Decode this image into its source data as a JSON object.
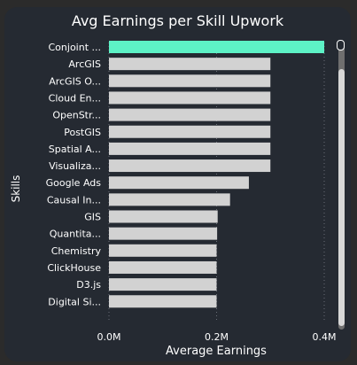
{
  "chart_data": {
    "type": "bar",
    "orientation": "horizontal",
    "title": "Avg Earnings per Skill Upwork",
    "xlabel": "Average Earnings",
    "ylabel": "Skills",
    "categories": [
      "Conjoint ...",
      "ArcGIS",
      "ArcGIS O...",
      "Cloud En...",
      "OpenStr...",
      "PostGIS",
      "Spatial A...",
      "Visualiza...",
      "Google Ads",
      "Causal In...",
      "GIS",
      "Quantita...",
      "Chemistry",
      "ClickHouse",
      "D3.js",
      "Digital Si..."
    ],
    "values": [
      400000,
      300000,
      300000,
      300000,
      300000,
      300000,
      300000,
      300000,
      260000,
      225000,
      202000,
      201000,
      200000,
      200000,
      200000,
      200000
    ],
    "highlight_index": 0,
    "xlim": [
      0,
      400000
    ],
    "xticks": [
      {
        "value": 0,
        "label": "0.0M"
      },
      {
        "value": 200000,
        "label": "0.2M"
      },
      {
        "value": 400000,
        "label": "0.4M"
      }
    ],
    "grid": "vertical dotted",
    "colors": {
      "highlight": "#5df2c6",
      "bar": "#d2d2d2",
      "text": "#ffffff",
      "background": "#252a32"
    }
  }
}
